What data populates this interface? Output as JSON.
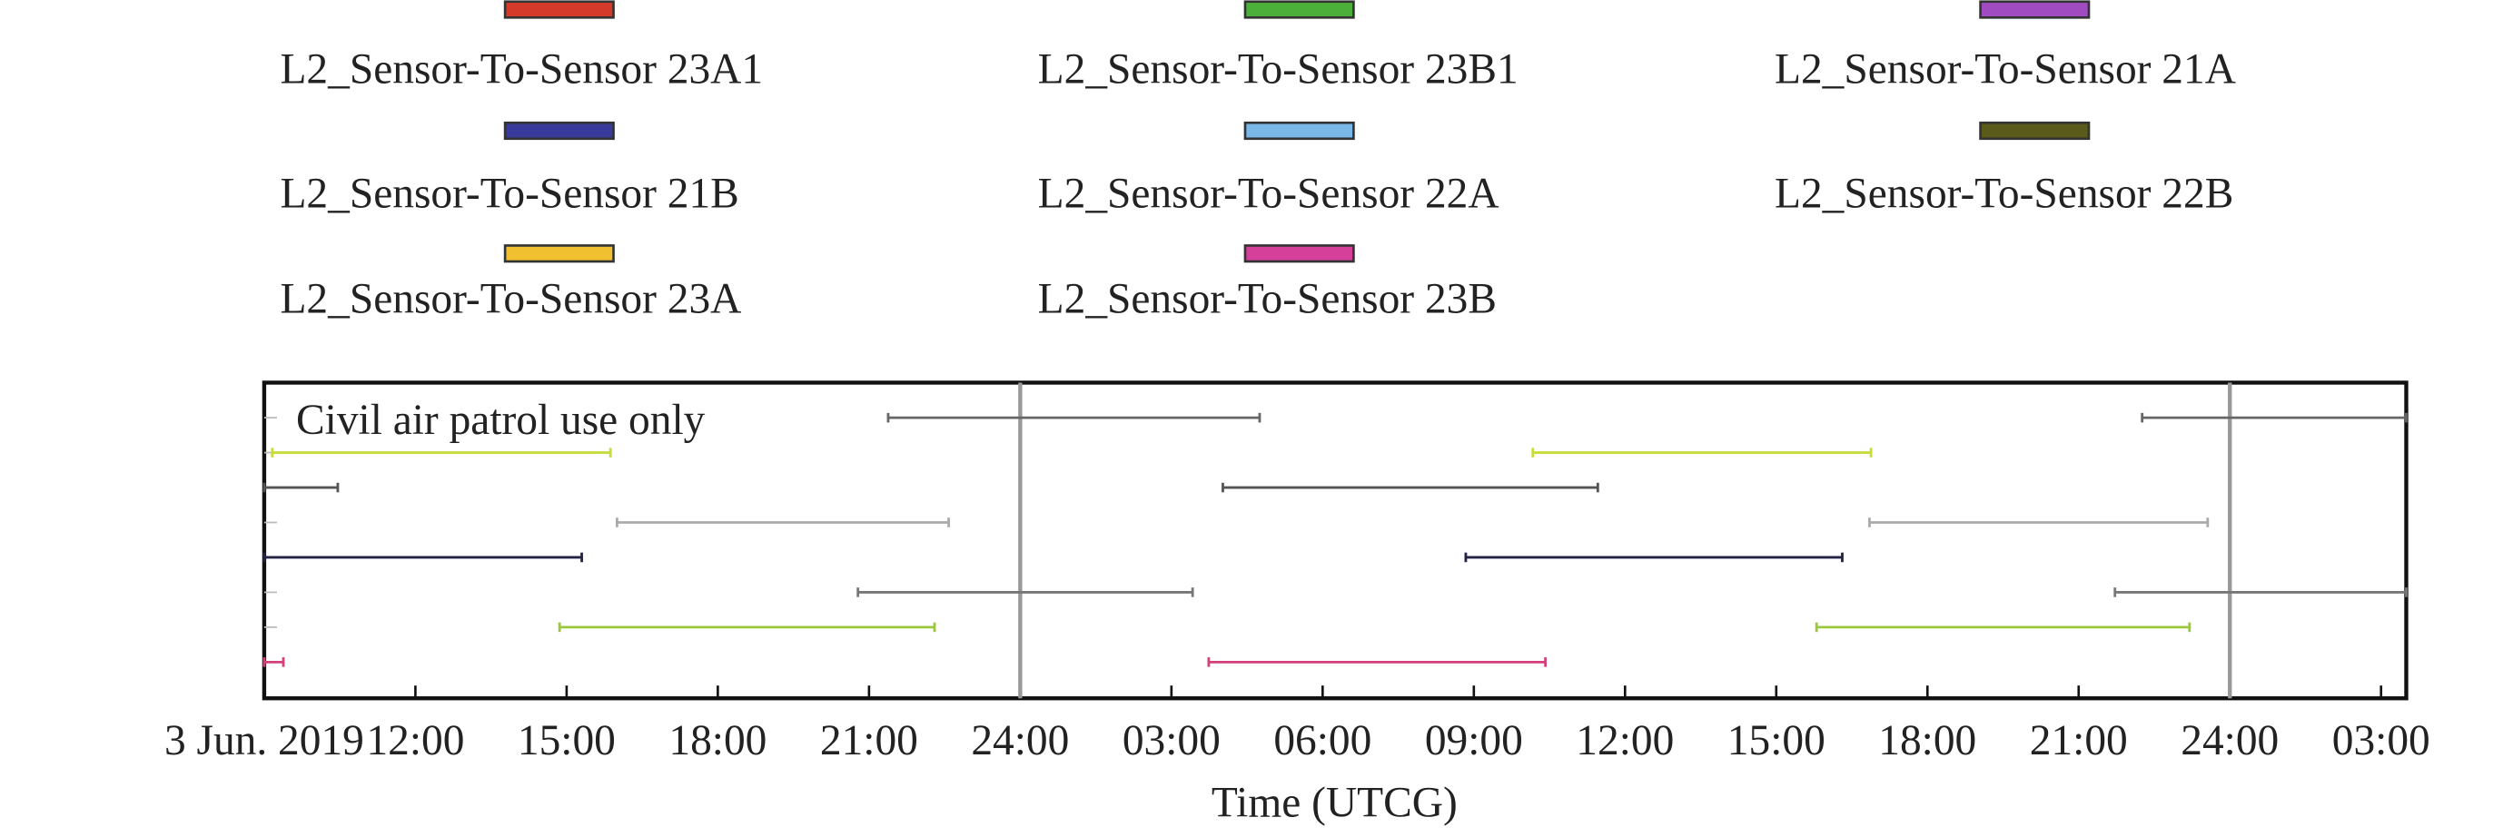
{
  "chart_data": {
    "type": "timeline",
    "legend": [
      {
        "name": "L2_Sensor-To-Sensor 23A1",
        "color": "#d43a2a"
      },
      {
        "name": "L2_Sensor-To-Sensor 23B1",
        "color": "#4caf3a"
      },
      {
        "name": "L2_Sensor-To-Sensor 21A",
        "color": "#a04cc0"
      },
      {
        "name": "L2_Sensor-To-Sensor 21B",
        "color": "#3a3a9a"
      },
      {
        "name": "L2_Sensor-To-Sensor 22A",
        "color": "#7ab8e8"
      },
      {
        "name": "L2_Sensor-To-Sensor 22B",
        "color": "#5a5a1a"
      },
      {
        "name": "L2_Sensor-To-Sensor 23A",
        "color": "#f0c030"
      },
      {
        "name": "L2_Sensor-To-Sensor 23B",
        "color": "#d4409a"
      }
    ],
    "annotation": "Civil air patrol use only",
    "xlabel": "Time (UTCG)",
    "xlim": [
      9,
      51.5
    ],
    "xticks": [
      {
        "value": 9,
        "label": "3 Jun. 2019"
      },
      {
        "value": 12,
        "label": "12:00"
      },
      {
        "value": 15,
        "label": "15:00"
      },
      {
        "value": 18,
        "label": "18:00"
      },
      {
        "value": 21,
        "label": "21:00"
      },
      {
        "value": 24,
        "label": "24:00"
      },
      {
        "value": 27,
        "label": "03:00"
      },
      {
        "value": 30,
        "label": "06:00"
      },
      {
        "value": 33,
        "label": "09:00"
      },
      {
        "value": 36,
        "label": "12:00"
      },
      {
        "value": 39,
        "label": "15:00"
      },
      {
        "value": 42,
        "label": "18:00"
      },
      {
        "value": 45,
        "label": "21:00"
      },
      {
        "value": 48,
        "label": "24:00"
      },
      {
        "value": 51,
        "label": "03:00"
      }
    ],
    "vlines": [
      24,
      48
    ],
    "rows": [
      {
        "color": "#666666",
        "intervals": [
          [
            21.38,
            28.75
          ],
          [
            46.26,
            51.5
          ]
        ]
      },
      {
        "color": "#c8dc3c",
        "intervals": [
          [
            9.16,
            15.87
          ],
          [
            34.17,
            40.88
          ]
        ]
      },
      {
        "color": "#555555",
        "intervals": [
          [
            9,
            10.46
          ],
          [
            28.02,
            35.46
          ]
        ]
      },
      {
        "color": "#aaaaaa",
        "intervals": [
          [
            16.0,
            22.58
          ],
          [
            40.85,
            47.56
          ]
        ]
      },
      {
        "color": "#222244",
        "intervals": [
          [
            9,
            15.3
          ],
          [
            32.84,
            40.31
          ]
        ]
      },
      {
        "color": "#777777",
        "intervals": [
          [
            20.78,
            27.42
          ],
          [
            45.72,
            51.5
          ]
        ]
      },
      {
        "color": "#9cc83c",
        "intervals": [
          [
            14.86,
            22.3
          ],
          [
            39.8,
            47.2
          ]
        ]
      },
      {
        "color": "#d6407a",
        "intervals": [
          [
            9,
            9.38
          ],
          [
            27.74,
            34.42
          ]
        ]
      }
    ]
  }
}
